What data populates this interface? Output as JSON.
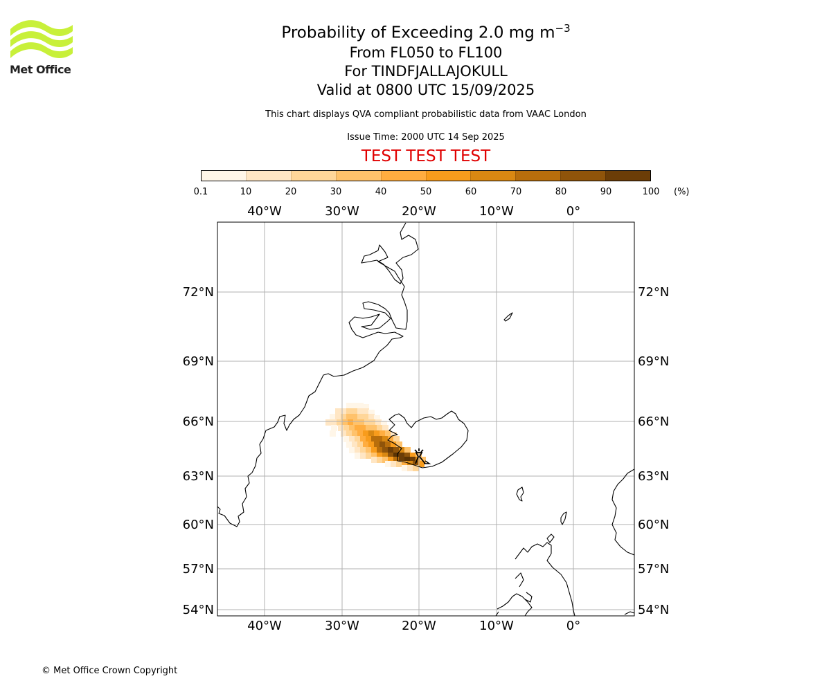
{
  "logo": {
    "text": "Met Office",
    "color": "#c8f03a"
  },
  "header": {
    "title_main": "Probability of Exceeding 2.0 mg m",
    "title_sup": "−3",
    "line_levels": "From FL050 to FL100",
    "line_volcano": "For TINDFJALLAJOKULL",
    "line_valid": "Valid at 0800 UTC 15/09/2025",
    "description": "This chart displays QVA compliant probabilistic data from VAAC London",
    "issue_time": "Issue Time: 2000 UTC 14 Sep 2025",
    "test_banner": "TEST TEST TEST"
  },
  "colorbar": {
    "ticks": [
      "0.1",
      "10",
      "20",
      "30",
      "40",
      "50",
      "60",
      "70",
      "80",
      "90",
      "100"
    ],
    "unit": "(%)",
    "colors": [
      "#fff6e8",
      "#ffe6c4",
      "#ffd699",
      "#ffc26b",
      "#ffad40",
      "#f89c1c",
      "#d98812",
      "#b86e0c",
      "#8f540a",
      "#6b3d07"
    ]
  },
  "map": {
    "lon_labels": [
      "40°W",
      "30°W",
      "20°W",
      "10°W",
      "0°"
    ],
    "lat_labels": [
      "72°N",
      "69°N",
      "66°N",
      "63°N",
      "60°N",
      "57°N",
      "54°N"
    ],
    "plume_color_max": "#5a3304"
  },
  "footer": {
    "copyright": "© Met Office Crown Copyright"
  }
}
